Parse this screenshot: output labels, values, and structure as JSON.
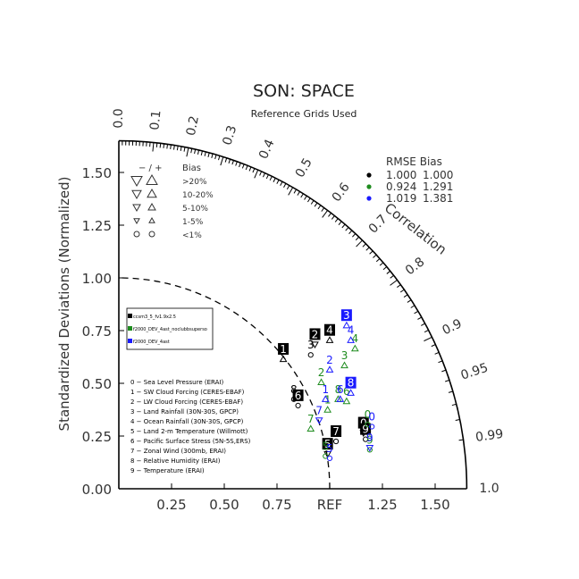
{
  "title": "SON: SPACE",
  "subtitle": "Reference Grids Used",
  "chart_data": {
    "type": "taylor",
    "ylabel": "Standardized Deviations (Normalized)",
    "corr_label": "Correlation",
    "std_ticks": [
      "0.00",
      "0.25",
      "0.50",
      "0.75",
      "1.00",
      "1.25",
      "1.50"
    ],
    "x_ticks": [
      "0.25",
      "0.50",
      "0.75",
      "REF",
      "1.25",
      "1.50"
    ],
    "max_std": 1.65,
    "corr_ticks": [
      "0.0",
      "0.1",
      "0.2",
      "0.3",
      "0.4",
      "0.5",
      "0.6",
      "0.7",
      "0.8",
      "0.9",
      "0.95",
      "0.99",
      "1.0"
    ],
    "bias_legend": {
      "header_signs": "−  /  +",
      "header_bias": "Bias",
      "rows": [
        {
          "label": ">20%",
          "size": 6
        },
        {
          "label": "10-20%",
          "size": 5
        },
        {
          "label": "5-10%",
          "size": 4
        },
        {
          "label": "1-5%",
          "size": 3
        },
        {
          "label": "<1%",
          "size": 0
        }
      ]
    },
    "rmse_table": {
      "header": "RMSE  Bias",
      "rows": [
        {
          "color": "#000000",
          "rmse": "1.000",
          "bias": "1.000"
        },
        {
          "color": "#1f8c1f",
          "rmse": "0.924",
          "bias": "1.291"
        },
        {
          "color": "#1a1aff",
          "rmse": "1.019",
          "bias": "1.381"
        }
      ]
    },
    "series": [
      {
        "name": "ccsm3_5_fv1.9x2.5",
        "color": "#000000"
      },
      {
        "name": "f2000_DEV_4ast_noclubbsuperso",
        "color": "#1f8c1f"
      },
      {
        "name": "f2000_DEV_4ast",
        "color": "#1a1aff"
      }
    ],
    "variables": [
      "0 − Sea Level Pressure (ERAI)",
      "1 − SW Cloud Forcing (CERES-EBAF)",
      "2 − LW Cloud Forcing (CERES-EBAF)",
      "3 − Land Rainfall (30N-30S, GPCP)",
      "4 − Ocean Rainfall (30N-30S, GPCP)",
      "5 − Land 2-m Temperature (Willmott)",
      "6 − Pacific Surface Stress (5N-5S,ERS)",
      "7 − Zonal Wind (300mb, ERAI)",
      "8 − Relative Humidity (ERAI)",
      "9 − Temperature (ERAI)"
    ],
    "points": [
      {
        "s": 0,
        "id": "0",
        "x": 1.16,
        "y": 0.29,
        "m": "down",
        "boxed": true
      },
      {
        "s": 0,
        "id": "1",
        "x": 0.78,
        "y": 0.64,
        "m": "up",
        "boxed": true
      },
      {
        "s": 0,
        "id": "2",
        "x": 0.93,
        "y": 0.71,
        "m": "down",
        "boxed": true
      },
      {
        "s": 0,
        "id": "3",
        "x": 0.91,
        "y": 0.66,
        "m": "circle",
        "boxed": false
      },
      {
        "s": 0,
        "id": "4",
        "x": 1.0,
        "y": 0.73,
        "m": "up",
        "boxed": true
      },
      {
        "s": 0,
        "id": "5",
        "x": 0.99,
        "y": 0.19,
        "m": "down",
        "boxed": true
      },
      {
        "s": 0,
        "id": "6",
        "x": 0.85,
        "y": 0.42,
        "m": "circle",
        "boxed": true
      },
      {
        "s": 0,
        "id": "7",
        "x": 1.03,
        "y": 0.25,
        "m": "circle",
        "boxed": true
      },
      {
        "s": 0,
        "id": "8",
        "x": 0.83,
        "y": 0.45,
        "m": "circle",
        "boxed": false
      },
      {
        "s": 0,
        "id": "9",
        "x": 1.17,
        "y": 0.26,
        "m": "circle",
        "boxed": true
      },
      {
        "s": 1,
        "id": "0",
        "x": 1.18,
        "y": 0.33,
        "m": "circle",
        "boxed": false
      },
      {
        "s": 1,
        "id": "1",
        "x": 0.99,
        "y": 0.4,
        "m": "up",
        "boxed": false
      },
      {
        "s": 1,
        "id": "2",
        "x": 0.96,
        "y": 0.53,
        "m": "up",
        "boxed": false
      },
      {
        "s": 1,
        "id": "3",
        "x": 1.07,
        "y": 0.61,
        "m": "up",
        "boxed": false
      },
      {
        "s": 1,
        "id": "4",
        "x": 1.12,
        "y": 0.69,
        "m": "up",
        "boxed": false
      },
      {
        "s": 1,
        "id": "5",
        "x": 0.98,
        "y": 0.18,
        "m": "circle",
        "boxed": false
      },
      {
        "s": 1,
        "id": "6",
        "x": 1.08,
        "y": 0.44,
        "m": "up",
        "boxed": false
      },
      {
        "s": 1,
        "id": "7",
        "x": 0.91,
        "y": 0.31,
        "m": "up",
        "boxed": false
      },
      {
        "s": 1,
        "id": "8",
        "x": 1.04,
        "y": 0.45,
        "m": "up",
        "boxed": false
      },
      {
        "s": 1,
        "id": "9",
        "x": 1.19,
        "y": 0.21,
        "m": "circle",
        "boxed": false
      },
      {
        "s": 2,
        "id": "0",
        "x": 1.2,
        "y": 0.32,
        "m": "circle",
        "boxed": false
      },
      {
        "s": 2,
        "id": "1",
        "x": 0.98,
        "y": 0.45,
        "m": "up",
        "boxed": false
      },
      {
        "s": 2,
        "id": "2",
        "x": 1.0,
        "y": 0.59,
        "m": "up",
        "boxed": false
      },
      {
        "s": 2,
        "id": "3",
        "x": 1.08,
        "y": 0.8,
        "m": "up",
        "boxed": true
      },
      {
        "s": 2,
        "id": "4",
        "x": 1.1,
        "y": 0.73,
        "m": "up",
        "boxed": false
      },
      {
        "s": 2,
        "id": "5",
        "x": 1.0,
        "y": 0.17,
        "m": "circle",
        "boxed": false
      },
      {
        "s": 2,
        "id": "6",
        "x": 1.05,
        "y": 0.45,
        "m": "up",
        "boxed": false
      },
      {
        "s": 2,
        "id": "7",
        "x": 0.95,
        "y": 0.35,
        "m": "down",
        "boxed": false
      },
      {
        "s": 2,
        "id": "8",
        "x": 1.1,
        "y": 0.48,
        "m": "up",
        "boxed": true
      },
      {
        "s": 2,
        "id": "9",
        "x": 1.19,
        "y": 0.22,
        "m": "down",
        "boxed": false
      }
    ]
  }
}
